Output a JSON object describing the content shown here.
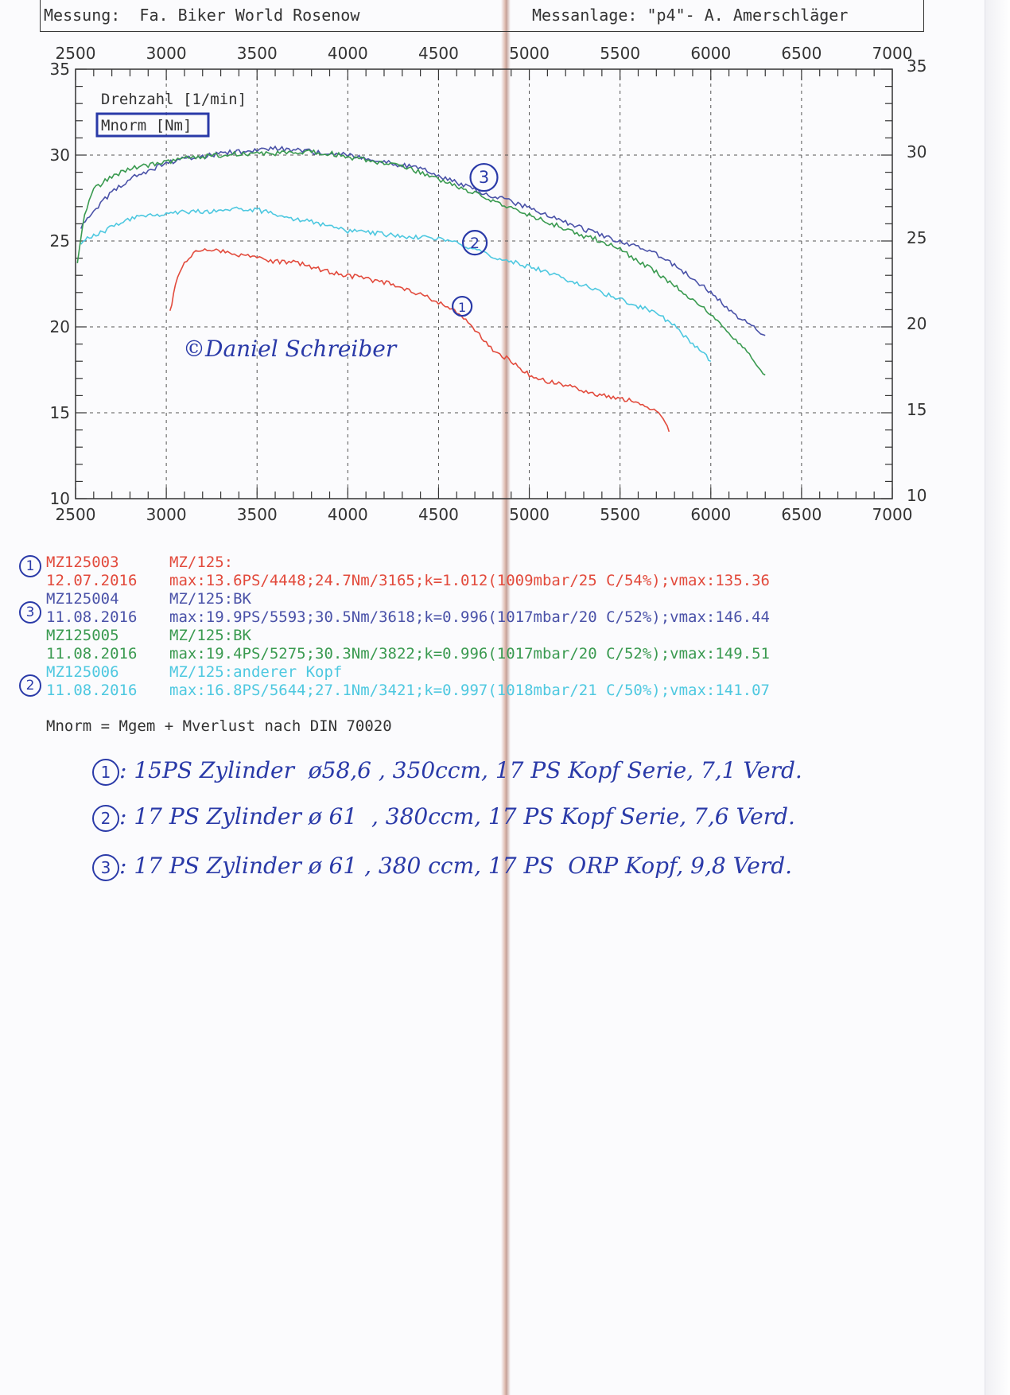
{
  "header": {
    "left": "Messung:  Fa. Biker World Rosenow",
    "right": "Messanlage: \"p4\"- A. Amerschläger"
  },
  "chart_data": {
    "type": "line",
    "xlim": [
      2500,
      7000
    ],
    "ylim": [
      10,
      35
    ],
    "x_ticks": [
      "2500",
      "3000",
      "3500",
      "4000",
      "4500",
      "5000",
      "5500",
      "6000",
      "6500",
      "7000"
    ],
    "y_ticks": [
      "10",
      "15",
      "20",
      "25",
      "30",
      "35"
    ],
    "legend": [
      "Drehzahl [1/min]",
      "Mnorm [Nm]"
    ],
    "grid": true,
    "watermark": "©Daniel Schreiber",
    "series": [
      {
        "name": "MZ125003",
        "label": "1",
        "color": "#e24a3c",
        "x": [
          3020,
          3050,
          3100,
          3150,
          3200,
          3300,
          3400,
          3500,
          3600,
          3700,
          3800,
          3900,
          4000,
          4100,
          4200,
          4300,
          4400,
          4500,
          4600,
          4650,
          4700,
          4800,
          4900,
          5000,
          5100,
          5200,
          5300,
          5400,
          5500,
          5600,
          5700,
          5750,
          5770
        ],
        "y": [
          20.8,
          22.5,
          23.8,
          24.3,
          24.5,
          24.4,
          24.2,
          24.1,
          23.8,
          23.8,
          23.5,
          23.2,
          23.0,
          22.8,
          22.6,
          22.3,
          21.9,
          21.4,
          20.9,
          20.5,
          19.8,
          18.7,
          18.0,
          17.2,
          16.8,
          16.6,
          16.3,
          16.0,
          15.8,
          15.6,
          15.1,
          14.5,
          13.9
        ]
      },
      {
        "name": "MZ125004",
        "label": "3",
        "color": "#4a52a8",
        "x": [
          2530,
          2600,
          2700,
          2800,
          2900,
          3000,
          3100,
          3200,
          3300,
          3400,
          3500,
          3600,
          3700,
          3800,
          3900,
          4000,
          4100,
          4200,
          4300,
          4400,
          4500,
          4600,
          4700,
          4800,
          4900,
          5000,
          5100,
          5200,
          5300,
          5400,
          5500,
          5600,
          5700,
          5800,
          5900,
          6000,
          6100,
          6200,
          6300
        ],
        "y": [
          25.8,
          26.8,
          27.8,
          28.6,
          29.1,
          29.5,
          29.8,
          29.9,
          30.1,
          30.2,
          30.3,
          30.4,
          30.3,
          30.2,
          30.1,
          30.0,
          29.8,
          29.6,
          29.4,
          29.2,
          28.8,
          28.4,
          28.0,
          27.6,
          27.3,
          26.9,
          26.5,
          26.1,
          25.7,
          25.3,
          25.0,
          24.7,
          24.2,
          23.6,
          22.8,
          22.0,
          21.0,
          20.2,
          19.5
        ]
      },
      {
        "name": "MZ125005",
        "label": "",
        "color": "#3a9a50",
        "x": [
          2510,
          2550,
          2600,
          2700,
          2800,
          2900,
          3000,
          3100,
          3200,
          3300,
          3400,
          3500,
          3600,
          3700,
          3800,
          3900,
          4000,
          4100,
          4200,
          4300,
          4400,
          4500,
          4600,
          4700,
          4800,
          4900,
          5000,
          5100,
          5200,
          5300,
          5400,
          5500,
          5600,
          5700,
          5800,
          5900,
          6000,
          6100,
          6200,
          6300
        ],
        "y": [
          23.8,
          26.5,
          28.0,
          28.8,
          29.2,
          29.4,
          29.6,
          29.8,
          29.9,
          30.0,
          30.1,
          30.1,
          30.1,
          30.2,
          30.2,
          30.1,
          29.9,
          29.7,
          29.5,
          29.3,
          29.0,
          28.6,
          28.2,
          27.8,
          27.3,
          26.9,
          26.5,
          26.1,
          25.7,
          25.3,
          25.0,
          24.5,
          23.8,
          23.2,
          22.4,
          21.6,
          20.8,
          19.6,
          18.6,
          17.2
        ]
      },
      {
        "name": "MZ125006",
        "label": "2",
        "color": "#4ec8e0",
        "x": [
          2530,
          2600,
          2700,
          2800,
          2900,
          3000,
          3100,
          3200,
          3300,
          3400,
          3500,
          3600,
          3700,
          3800,
          3900,
          4000,
          4100,
          4200,
          4300,
          4400,
          4500,
          4600,
          4700,
          4800,
          4900,
          5000,
          5100,
          5200,
          5300,
          5400,
          5500,
          5600,
          5700,
          5800,
          5900,
          6000
        ],
        "y": [
          24.9,
          25.3,
          25.8,
          26.3,
          26.5,
          26.6,
          26.7,
          26.7,
          26.8,
          26.9,
          26.8,
          26.6,
          26.3,
          26.1,
          25.8,
          25.6,
          25.5,
          25.4,
          25.3,
          25.2,
          25.1,
          24.9,
          24.5,
          24.1,
          23.8,
          23.5,
          23.2,
          22.8,
          22.4,
          22.0,
          21.6,
          21.2,
          20.8,
          20.1,
          19.0,
          18.0
        ]
      }
    ]
  },
  "curve_labels": [
    "3",
    "2",
    "1"
  ],
  "runs": [
    {
      "id": "MZ125003",
      "desc": "MZ/125:",
      "date": "12.07.2016",
      "max": "max:13.6PS/4448;24.7Nm/3165;k=1.012(1009mbar/25 C/54%);vmax:135.36",
      "color": "#e24a3c",
      "mark": "1"
    },
    {
      "id": "MZ125004",
      "desc": "MZ/125:BK",
      "date": "11.08.2016",
      "max": "max:19.9PS/5593;30.5Nm/3618;k=0.996(1017mbar/20 C/52%);vmax:146.44",
      "color": "#4a52a8",
      "mark": "3"
    },
    {
      "id": "MZ125005",
      "desc": "MZ/125:BK",
      "date": "11.08.2016",
      "max": "max:19.4PS/5275;30.3Nm/3822;k=0.996(1017mbar/20 C/52%);vmax:149.51",
      "color": "#3a9a50",
      "mark": ""
    },
    {
      "id": "MZ125006",
      "desc": "MZ/125:anderer Kopf",
      "date": "11.08.2016",
      "max": "max:16.8PS/5644;27.1Nm/3421;k=0.997(1018mbar/21 C/50%);vmax:141.07",
      "color": "#4ec8e0",
      "mark": "2"
    }
  ],
  "formula": "Mnorm = Mgem + Mverlust nach DIN 70020",
  "notes": [
    {
      "mark": "1",
      "text": ": 15PS Zylinder  ø58,6 , 350ccm, 17 PS Kopf Serie, 7,1 Verd."
    },
    {
      "mark": "2",
      "text": ": 17 PS Zylinder ø 61  , 380ccm, 17 PS Kopf Serie, 7,6 Verd."
    },
    {
      "mark": "3",
      "text": ": 17 PS Zylinder ø 61 , 380 ccm, 17 PS  ORP Kopf, 9,8 Verd."
    }
  ]
}
